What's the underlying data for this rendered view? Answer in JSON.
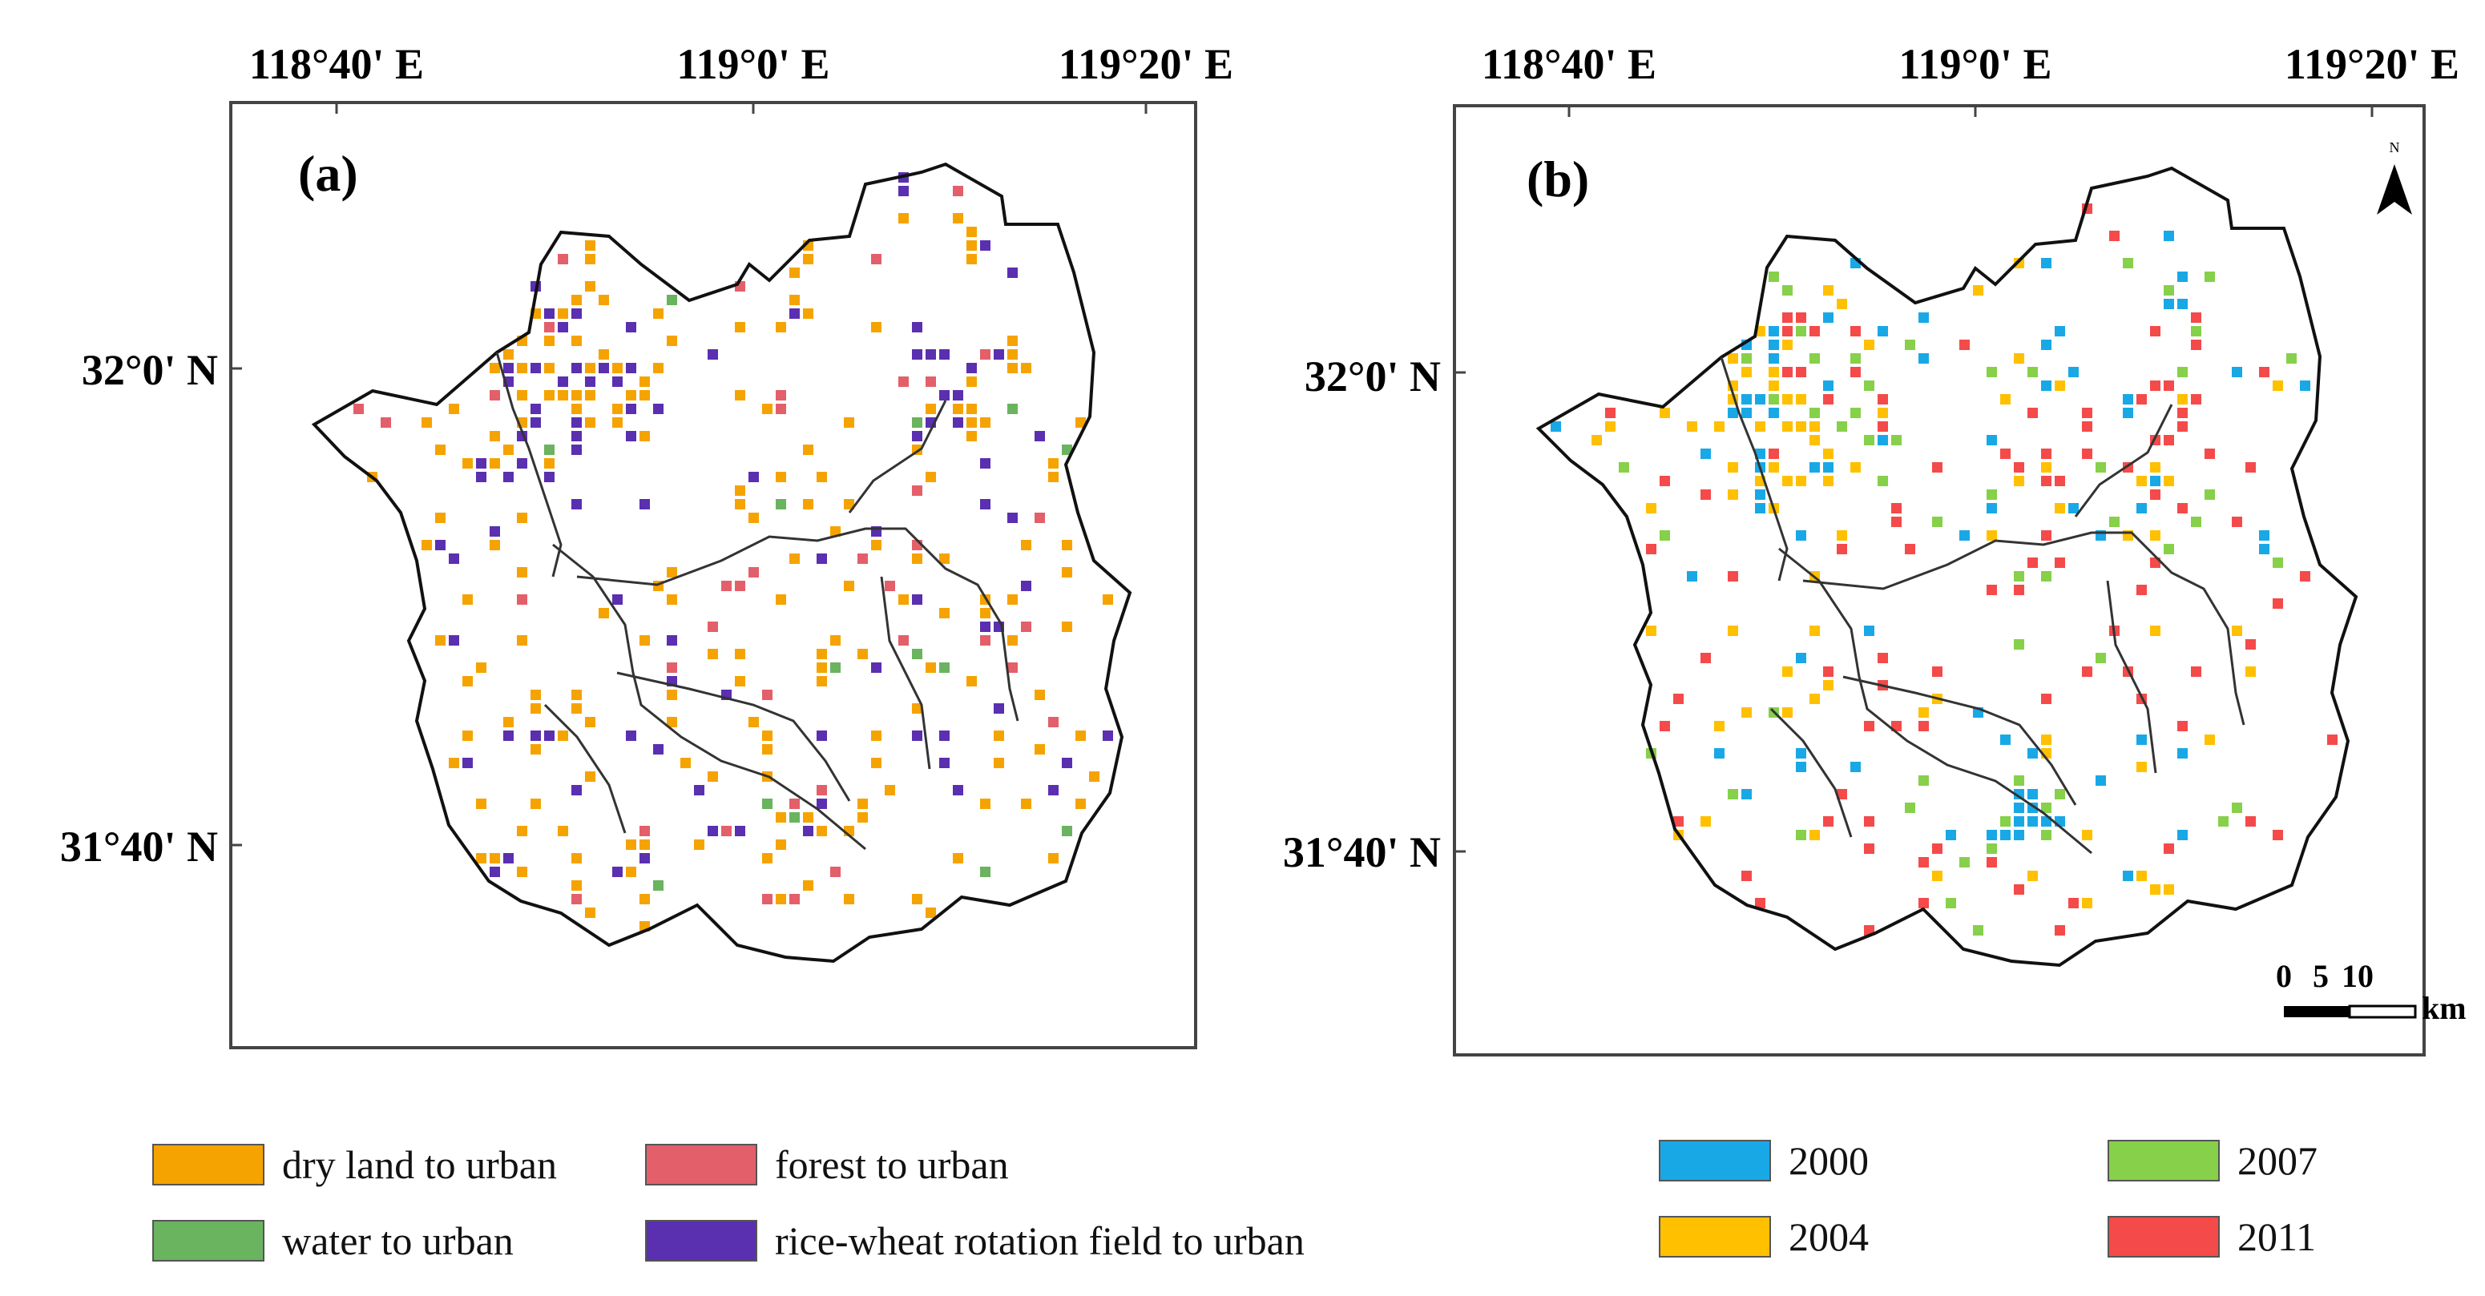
{
  "panels": [
    {
      "id": "a",
      "label": "(a)",
      "lon_labels": [
        "118°40' E",
        "119°0' E",
        "119°20' E"
      ],
      "lat_labels": [
        "32°0' N",
        "31°40' N"
      ],
      "categories": [
        "dry land to urban",
        "water to urban",
        "forest to urban",
        "rice-wheat rotation field to urban"
      ]
    },
    {
      "id": "b",
      "label": "(b)",
      "lon_labels": [
        "118°40' E",
        "119°0' E",
        "119°20' E"
      ],
      "lat_labels": [
        "32°0' N",
        "31°40' N"
      ],
      "north_label": "N",
      "scale_ticks": [
        "0",
        "5",
        "10"
      ],
      "scale_unit": "km",
      "categories": [
        "2000",
        "2004",
        "2007",
        "2011"
      ]
    }
  ],
  "legend_a": [
    {
      "label": "dry land to urban",
      "color": "#f5a300"
    },
    {
      "label": "forest to urban",
      "color": "#e35f6a"
    },
    {
      "label": "water to urban",
      "color": "#6ab35f"
    },
    {
      "label": "rice-wheat rotation field to urban",
      "color": "#5a2fb0"
    }
  ],
  "legend_b": [
    {
      "label": "2000",
      "color": "#19a8e6"
    },
    {
      "label": "2007",
      "color": "#86d04a"
    },
    {
      "label": "2004",
      "color": "#ffc000"
    },
    {
      "label": "2011",
      "color": "#f44a4a"
    }
  ],
  "colors": {
    "a": [
      "#f5a300",
      "#6ab35f",
      "#e35f6a",
      "#5a2fb0"
    ],
    "b": [
      "#19a8e6",
      "#ffc000",
      "#86d04a",
      "#f44a4a"
    ]
  }
}
